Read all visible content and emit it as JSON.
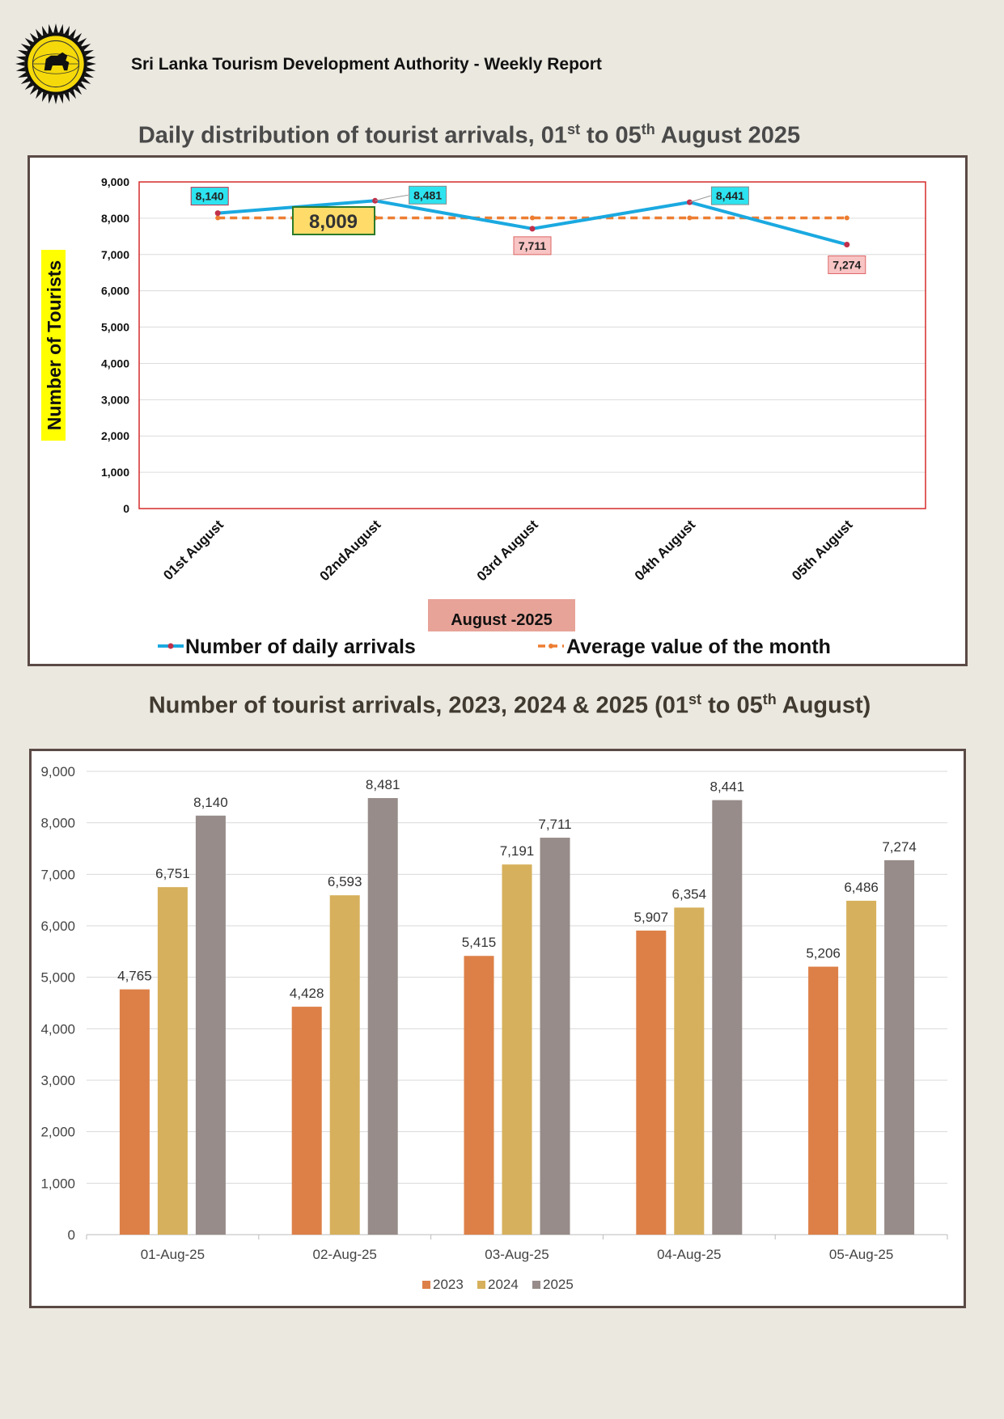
{
  "header": {
    "title": "Sri Lanka Tourism Development Authority - Weekly Report"
  },
  "colors": {
    "page_bg": "#ebe8e0",
    "line_series": "#1aa9e0",
    "avg_series": "#ed7d31",
    "bar_2023": "#dd8048",
    "bar_2024": "#d6b05c",
    "bar_2025": "#978c89",
    "plot_border": "#d52b2b",
    "ylabel_highlight": "#ffff00",
    "label_cyan": "#2de3ef",
    "label_pink": "#f8c4c4",
    "avg_label_bg": "#ffdc6a",
    "xlabel_bg": "#e8a398"
  },
  "chart1_title": {
    "pre": "Daily distribution of tourist arrivals, 01",
    "sup1": "st",
    "mid": " to 05",
    "sup2": "th",
    "post": " August 2025"
  },
  "chart2_title": {
    "pre": "Number of tourist arrivals, 2023, 2024 & 2025 (01",
    "sup1": "st",
    "mid": " to 05",
    "sup2": "th",
    "post": " August)"
  },
  "chart_data": [
    {
      "type": "line",
      "categories": [
        "01st August",
        "02ndAugust",
        "03rd August",
        "04th August",
        "05th August"
      ],
      "series": [
        {
          "name": "Number of daily arrivals",
          "values": [
            8140,
            8481,
            7711,
            8441,
            7274
          ]
        },
        {
          "name": "Average value of the month",
          "values": [
            8009,
            8009,
            8009,
            8009,
            8009
          ]
        }
      ],
      "data_labels": [
        "8,140",
        "8,481",
        "7,711",
        "8,441",
        "7,274"
      ],
      "average_label": "8,009",
      "xlabel": "August -2025",
      "ylabel": "Number of Tourists",
      "ylim": [
        0,
        9000
      ],
      "yticks": [
        "0",
        "1,000",
        "2,000",
        "3,000",
        "4,000",
        "5,000",
        "6,000",
        "7,000",
        "8,000",
        "9,000"
      ],
      "grid": true,
      "legend_position": "bottom"
    },
    {
      "type": "bar",
      "categories": [
        "01-Aug-25",
        "02-Aug-25",
        "03-Aug-25",
        "04-Aug-25",
        "05-Aug-25"
      ],
      "series": [
        {
          "name": "2023",
          "values": [
            4765,
            4428,
            5415,
            5907,
            5206
          ],
          "labels": [
            "4,765",
            "4,428",
            "5,415",
            "5,907",
            "5,206"
          ]
        },
        {
          "name": "2024",
          "values": [
            6751,
            6593,
            7191,
            6354,
            6486
          ],
          "labels": [
            "6,751",
            "6,593",
            "7,191",
            "6,354",
            "6,486"
          ]
        },
        {
          "name": "2025",
          "values": [
            8140,
            8481,
            7711,
            8441,
            7274
          ],
          "labels": [
            "8,140",
            "8,481",
            "7,711",
            "8,441",
            "7,274"
          ]
        }
      ],
      "ylim": [
        0,
        9000
      ],
      "yticks": [
        "0",
        "1,000",
        "2,000",
        "3,000",
        "4,000",
        "5,000",
        "6,000",
        "7,000",
        "8,000",
        "9,000"
      ],
      "grid": true,
      "legend_position": "bottom"
    }
  ]
}
